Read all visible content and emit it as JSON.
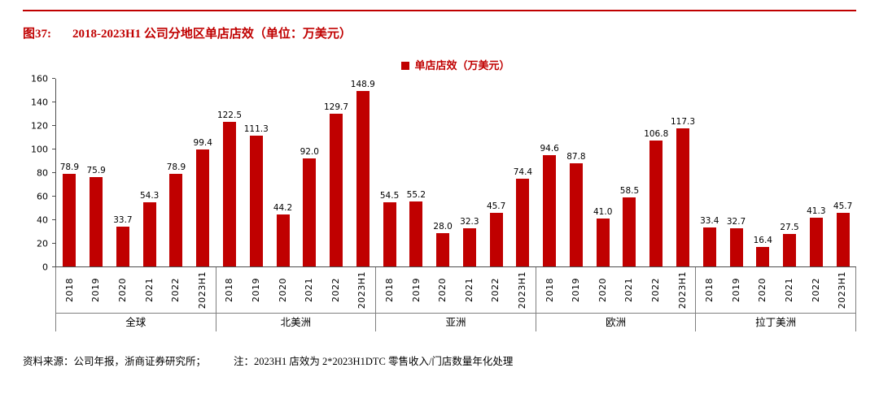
{
  "page": {
    "title_prefix": "图37:",
    "title": "2018-2023H1 公司分地区单店店效（单位：万美元）",
    "source": "资料来源：公司年报，浙商证券研究所；",
    "note": "注：2023H1 店效为 2*2023H1DTC 零售收入/门店数量年化处理",
    "accent_color": "#C00000"
  },
  "chart_data": {
    "type": "bar",
    "legend": "单店店效（万美元）",
    "bar_color": "#C00000",
    "ylim": [
      0,
      160
    ],
    "yticks": [
      0,
      20,
      40,
      60,
      80,
      100,
      120,
      140,
      160
    ],
    "grid": false,
    "legend_position": "top-center",
    "categories": [
      "2018",
      "2019",
      "2020",
      "2021",
      "2022",
      "2023H1"
    ],
    "groups": [
      {
        "label": "全球",
        "values": [
          78.9,
          75.9,
          33.7,
          54.3,
          78.9,
          99.4
        ]
      },
      {
        "label": "北美洲",
        "values": [
          122.5,
          111.3,
          44.2,
          92.0,
          129.7,
          148.9
        ]
      },
      {
        "label": "亚洲",
        "values": [
          54.5,
          55.2,
          28.0,
          32.3,
          45.7,
          74.4
        ]
      },
      {
        "label": "欧洲",
        "values": [
          94.6,
          87.8,
          41.0,
          58.5,
          106.8,
          117.3
        ]
      },
      {
        "label": "拉丁美洲",
        "values": [
          33.4,
          32.7,
          16.4,
          27.5,
          41.3,
          45.7
        ]
      }
    ]
  }
}
